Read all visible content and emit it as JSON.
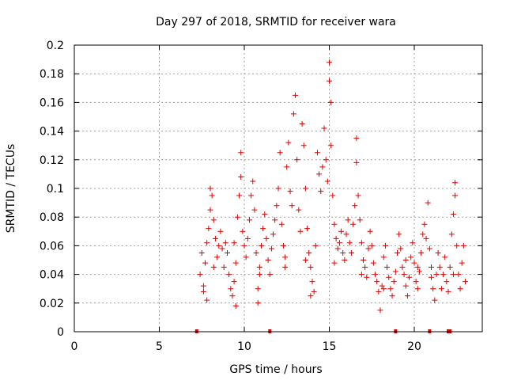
{
  "chart_data": {
    "type": "scatter",
    "title": "Day 297 of 2018, SRMTID for receiver wara",
    "xlabel": "GPS time / hours",
    "ylabel": "SRMTID / TECUs",
    "xlim": [
      0,
      24
    ],
    "ylim": [
      0,
      0.2
    ],
    "xticks": [
      "0",
      "5",
      "10",
      "15",
      "20"
    ],
    "xtick_values": [
      0,
      5,
      10,
      15,
      20
    ],
    "yticks": [
      "0",
      "0.02",
      "0.04",
      "0.06",
      "0.08",
      "0.1",
      "0.12",
      "0.14",
      "0.16",
      "0.18",
      "0.2"
    ],
    "ytick_values": [
      0,
      0.02,
      0.04,
      0.06,
      0.08,
      0.1,
      0.12,
      0.14,
      0.16,
      0.18,
      0.2
    ],
    "grid": true,
    "marker": "+",
    "color": "#e00000",
    "gap_markers_x": [
      7.2,
      11.5,
      18.9,
      20.9,
      22.0,
      22.1
    ],
    "series": [
      {
        "name": "SRMTID",
        "points": [
          [
            7.4,
            0.04
          ],
          [
            7.5,
            0.055
          ],
          [
            7.6,
            0.032
          ],
          [
            7.7,
            0.048
          ],
          [
            7.8,
            0.062
          ],
          [
            7.9,
            0.072
          ],
          [
            8.0,
            0.085
          ],
          [
            8.0,
            0.1
          ],
          [
            8.1,
            0.095
          ],
          [
            8.2,
            0.078
          ],
          [
            8.3,
            0.065
          ],
          [
            8.4,
            0.052
          ],
          [
            8.5,
            0.06
          ],
          [
            8.6,
            0.07
          ],
          [
            8.7,
            0.058
          ],
          [
            8.8,
            0.045
          ],
          [
            8.9,
            0.062
          ],
          [
            9.0,
            0.055
          ],
          [
            9.1,
            0.04
          ],
          [
            9.2,
            0.03
          ],
          [
            9.3,
            0.025
          ],
          [
            9.4,
            0.035
          ],
          [
            9.5,
            0.048
          ],
          [
            9.6,
            0.08
          ],
          [
            9.7,
            0.095
          ],
          [
            9.8,
            0.125
          ],
          [
            9.8,
            0.108
          ],
          [
            9.9,
            0.07
          ],
          [
            10.0,
            0.06
          ],
          [
            10.1,
            0.052
          ],
          [
            10.2,
            0.065
          ],
          [
            10.3,
            0.078
          ],
          [
            10.4,
            0.095
          ],
          [
            10.5,
            0.105
          ],
          [
            10.6,
            0.085
          ],
          [
            10.7,
            0.055
          ],
          [
            10.8,
            0.03
          ],
          [
            10.9,
            0.045
          ],
          [
            11.0,
            0.06
          ],
          [
            11.1,
            0.072
          ],
          [
            11.2,
            0.082
          ],
          [
            11.3,
            0.065
          ],
          [
            11.4,
            0.05
          ],
          [
            11.5,
            0.04
          ],
          [
            11.6,
            0.058
          ],
          [
            11.7,
            0.068
          ],
          [
            11.8,
            0.078
          ],
          [
            11.9,
            0.088
          ],
          [
            12.0,
            0.1
          ],
          [
            12.1,
            0.125
          ],
          [
            12.2,
            0.075
          ],
          [
            12.3,
            0.06
          ],
          [
            12.4,
            0.045
          ],
          [
            12.5,
            0.115
          ],
          [
            12.6,
            0.132
          ],
          [
            12.7,
            0.098
          ],
          [
            12.8,
            0.088
          ],
          [
            12.9,
            0.152
          ],
          [
            13.0,
            0.165
          ],
          [
            13.1,
            0.12
          ],
          [
            13.2,
            0.085
          ],
          [
            13.3,
            0.07
          ],
          [
            13.4,
            0.145
          ],
          [
            13.5,
            0.13
          ],
          [
            13.6,
            0.1
          ],
          [
            13.7,
            0.072
          ],
          [
            13.8,
            0.055
          ],
          [
            13.9,
            0.045
          ],
          [
            14.0,
            0.035
          ],
          [
            14.1,
            0.028
          ],
          [
            14.2,
            0.06
          ],
          [
            14.3,
            0.125
          ],
          [
            14.4,
            0.11
          ],
          [
            14.5,
            0.098
          ],
          [
            14.6,
            0.115
          ],
          [
            14.7,
            0.142
          ],
          [
            14.8,
            0.12
          ],
          [
            14.9,
            0.105
          ],
          [
            15.0,
            0.175
          ],
          [
            15.0,
            0.188
          ],
          [
            15.1,
            0.16
          ],
          [
            15.1,
            0.13
          ],
          [
            15.2,
            0.095
          ],
          [
            15.3,
            0.075
          ],
          [
            15.4,
            0.065
          ],
          [
            15.5,
            0.058
          ],
          [
            15.6,
            0.062
          ],
          [
            15.7,
            0.07
          ],
          [
            15.8,
            0.055
          ],
          [
            15.9,
            0.05
          ],
          [
            16.0,
            0.068
          ],
          [
            16.1,
            0.078
          ],
          [
            16.2,
            0.062
          ],
          [
            16.3,
            0.055
          ],
          [
            16.4,
            0.075
          ],
          [
            16.5,
            0.088
          ],
          [
            16.6,
            0.135
          ],
          [
            16.6,
            0.118
          ],
          [
            16.7,
            0.095
          ],
          [
            16.8,
            0.078
          ],
          [
            16.9,
            0.062
          ],
          [
            17.0,
            0.05
          ],
          [
            17.1,
            0.045
          ],
          [
            17.2,
            0.038
          ],
          [
            17.3,
            0.058
          ],
          [
            17.4,
            0.07
          ],
          [
            17.5,
            0.06
          ],
          [
            17.6,
            0.048
          ],
          [
            17.7,
            0.04
          ],
          [
            17.8,
            0.035
          ],
          [
            17.9,
            0.028
          ],
          [
            18.0,
            0.015
          ],
          [
            18.1,
            0.032
          ],
          [
            18.2,
            0.052
          ],
          [
            18.3,
            0.06
          ],
          [
            18.4,
            0.045
          ],
          [
            18.5,
            0.038
          ],
          [
            18.6,
            0.03
          ],
          [
            18.7,
            0.025
          ],
          [
            18.8,
            0.035
          ],
          [
            18.9,
            0.042
          ],
          [
            19.0,
            0.055
          ],
          [
            19.1,
            0.068
          ],
          [
            19.2,
            0.058
          ],
          [
            19.3,
            0.045
          ],
          [
            19.4,
            0.04
          ],
          [
            19.5,
            0.032
          ],
          [
            19.6,
            0.025
          ],
          [
            19.7,
            0.038
          ],
          [
            19.8,
            0.052
          ],
          [
            19.9,
            0.062
          ],
          [
            20.0,
            0.048
          ],
          [
            20.1,
            0.035
          ],
          [
            20.2,
            0.03
          ],
          [
            20.3,
            0.042
          ],
          [
            20.4,
            0.055
          ],
          [
            20.5,
            0.068
          ],
          [
            20.6,
            0.075
          ],
          [
            20.7,
            0.065
          ],
          [
            20.8,
            0.09
          ],
          [
            20.9,
            0.058
          ],
          [
            21.0,
            0.045
          ],
          [
            21.1,
            0.03
          ],
          [
            21.2,
            0.022
          ],
          [
            21.3,
            0.04
          ],
          [
            21.4,
            0.055
          ],
          [
            21.5,
            0.045
          ],
          [
            21.6,
            0.03
          ],
          [
            21.7,
            0.04
          ],
          [
            21.8,
            0.052
          ],
          [
            21.9,
            0.035
          ],
          [
            22.0,
            0.028
          ],
          [
            22.1,
            0.045
          ],
          [
            22.2,
            0.068
          ],
          [
            22.3,
            0.082
          ],
          [
            22.4,
            0.095
          ],
          [
            22.4,
            0.104
          ],
          [
            22.5,
            0.06
          ],
          [
            22.6,
            0.04
          ],
          [
            22.7,
            0.03
          ],
          [
            22.8,
            0.048
          ],
          [
            22.9,
            0.06
          ],
          [
            23.0,
            0.035
          ],
          [
            7.6,
            0.028
          ],
          [
            8.2,
            0.045
          ],
          [
            9.4,
            0.062
          ],
          [
            10.9,
            0.04
          ],
          [
            12.4,
            0.052
          ],
          [
            13.6,
            0.05
          ],
          [
            15.3,
            0.048
          ],
          [
            16.9,
            0.04
          ],
          [
            18.2,
            0.03
          ],
          [
            19.5,
            0.05
          ],
          [
            20.2,
            0.045
          ],
          [
            21.0,
            0.038
          ],
          [
            22.3,
            0.04
          ],
          [
            7.8,
            0.022
          ],
          [
            9.5,
            0.018
          ],
          [
            10.8,
            0.02
          ],
          [
            13.9,
            0.025
          ]
        ]
      }
    ]
  }
}
